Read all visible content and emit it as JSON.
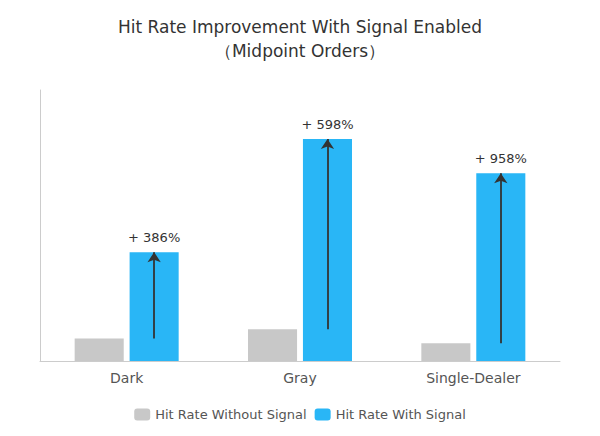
{
  "chart_data": {
    "type": "bar",
    "title": "Hit Rate Improvement With Signal Enabled\n（Midpoint Orders）",
    "categories": [
      "Dark",
      "Gray",
      "Single-Dealer"
    ],
    "series": [
      {
        "name": "Hit Rate Without Signal",
        "color": "#c8c8c8",
        "values": [
          0.048,
          0.068,
          0.038
        ]
      },
      {
        "name": "Hit Rate With Signal",
        "color": "#29b6f6",
        "values": [
          0.233,
          0.475,
          0.402
        ]
      }
    ],
    "annotations": [
      "+ 386%",
      "+ 598%",
      "+ 958%"
    ],
    "ylim": [
      0,
      0.58
    ],
    "tick_labels": "x",
    "grid": false,
    "legend": "bottom"
  }
}
